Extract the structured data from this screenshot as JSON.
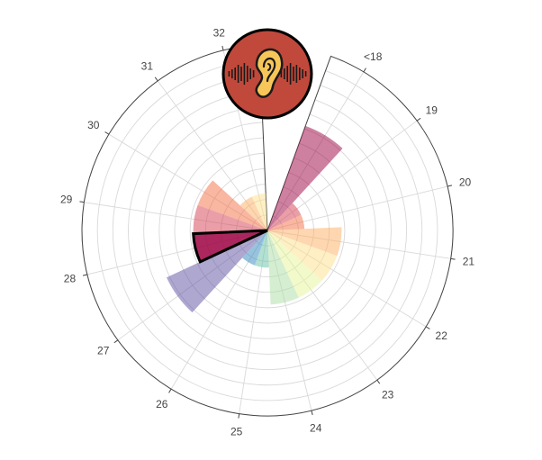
{
  "chart_data": {
    "type": "barpolar",
    "categories": [
      "<18",
      "19",
      "20",
      "21",
      "22",
      "23",
      "24",
      "25",
      "26",
      "27",
      "28",
      "29",
      "30",
      "31",
      "32"
    ],
    "values": [
      3,
      1,
      1,
      2,
      2,
      2,
      2,
      1,
      1,
      3,
      2,
      2,
      2,
      1,
      1
    ],
    "radial_range": [
      0,
      5
    ],
    "gap_sector": "Top (between 32 and <18)",
    "highlight_category": "28",
    "colors": [
      "#9e0142",
      "#d53e4f",
      "#f46d43",
      "#fdae61",
      "#fee08b",
      "#e6f598",
      "#abdda4",
      "#66c2a5",
      "#3288bd",
      "#5e4fa2",
      "#9e0142",
      "#d53e4f",
      "#f46d43",
      "#fdae61",
      "#fee08b"
    ],
    "grid": true,
    "title": "",
    "xlabel": "",
    "ylabel": ""
  },
  "icon": {
    "name": "ear-sound-icon",
    "circle_color": "#c0493b",
    "ear_color": "#f6c659"
  }
}
